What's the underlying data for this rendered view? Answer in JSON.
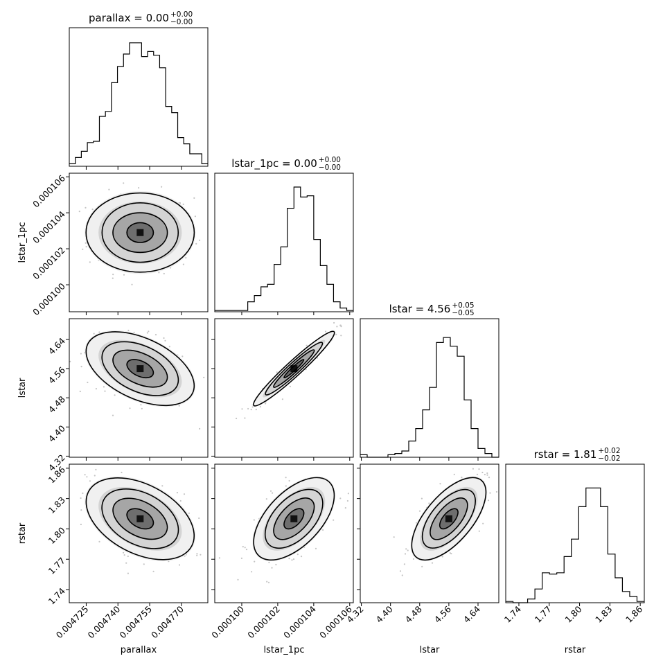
{
  "chart_data": {
    "type": "corner",
    "params": [
      "parallax",
      "lstar_1pc",
      "lstar",
      "rstar"
    ],
    "axis_labels": [
      "parallax",
      "lstar_1pc",
      "lstar",
      "rstar"
    ],
    "titles": [
      {
        "prefix": "parallax = 0.00",
        "sup": "+0.00",
        "sub": "−0.00"
      },
      {
        "prefix": "lstar_1pc = 0.00",
        "sup": "+0.00",
        "sub": "−0.00"
      },
      {
        "prefix": "lstar = 4.56",
        "sup": "+0.05",
        "sub": "−0.05"
      },
      {
        "prefix": "rstar = 1.81",
        "sup": "+0.02",
        "sub": "−0.02"
      }
    ],
    "ranges": [
      [
        0.004717,
        0.0047825
      ],
      [
        9.85e-05,
        0.0001062
      ],
      [
        4.317,
        4.697
      ],
      [
        1.727,
        1.864
      ]
    ],
    "ticks": [
      {
        "values": [
          0.004725,
          0.00474,
          0.004755,
          0.00477
        ],
        "labels": [
          "0.004725",
          "0.004740",
          "0.004755",
          "0.004770"
        ]
      },
      {
        "values": [
          0.0001,
          0.000102,
          0.000104,
          0.000106
        ],
        "labels": [
          "0.000100",
          "0.000102",
          "0.000104",
          "0.000106"
        ]
      },
      {
        "values": [
          4.32,
          4.4,
          4.48,
          4.56,
          4.64
        ],
        "labels": [
          "4.32",
          "4.40",
          "4.48",
          "4.56",
          "4.64"
        ]
      },
      {
        "values": [
          1.74,
          1.77,
          1.8,
          1.83,
          1.86
        ],
        "labels": [
          "1.74",
          "1.77",
          "1.80",
          "1.83",
          "1.86"
        ]
      }
    ],
    "histograms": [
      [
        0.02,
        0.07,
        0.12,
        0.19,
        0.2,
        0.4,
        0.44,
        0.67,
        0.8,
        0.9,
        0.99,
        0.99,
        0.88,
        0.92,
        0.89,
        0.79,
        0.48,
        0.43,
        0.23,
        0.18,
        0.1,
        0.1,
        0.02
      ],
      [
        0.01,
        0.01,
        0.01,
        0.01,
        0.01,
        0.08,
        0.13,
        0.2,
        0.22,
        0.38,
        0.52,
        0.83,
        1.0,
        0.92,
        0.93,
        0.58,
        0.37,
        0.22,
        0.08,
        0.03,
        0.01
      ],
      [
        0.02,
        0.0,
        0.0,
        0.0,
        0.02,
        0.03,
        0.05,
        0.13,
        0.23,
        0.38,
        0.56,
        0.92,
        0.96,
        0.89,
        0.81,
        0.46,
        0.23,
        0.07,
        0.03,
        0.0
      ],
      [
        0.01,
        0.0,
        0.0,
        0.03,
        0.11,
        0.24,
        0.23,
        0.24,
        0.37,
        0.51,
        0.77,
        0.92,
        0.92,
        0.77,
        0.39,
        0.2,
        0.09,
        0.05,
        0.01
      ]
    ],
    "contour_levels": [
      "0.5-sigma",
      "1-sigma",
      "1.5-sigma",
      "2-sigma"
    ],
    "pairs": [
      {
        "x": 0,
        "y": 1,
        "mean": [
          0.0047505,
          0.0001029
        ],
        "sd": [
          1.25e-05,
          1.1e-06
        ],
        "rho": 0.0
      },
      {
        "x": 0,
        "y": 2,
        "mean": [
          0.0047505,
          4.56
        ],
        "sd": [
          1.25e-05,
          0.05
        ],
        "rho": -0.45
      },
      {
        "x": 1,
        "y": 2,
        "mean": [
          0.0001029,
          4.56
        ],
        "sd": [
          1.1e-06,
          0.05
        ],
        "rho": 0.96
      },
      {
        "x": 0,
        "y": 3,
        "mean": [
          0.0047505,
          1.81
        ],
        "sd": [
          1.25e-05,
          0.02
        ],
        "rho": -0.4
      },
      {
        "x": 1,
        "y": 3,
        "mean": [
          0.0001029,
          1.81
        ],
        "sd": [
          1.1e-06,
          0.02
        ],
        "rho": 0.55
      },
      {
        "x": 2,
        "y": 3,
        "mean": [
          4.56,
          1.81
        ],
        "sd": [
          0.05,
          0.02
        ],
        "rho": 0.63
      }
    ]
  }
}
